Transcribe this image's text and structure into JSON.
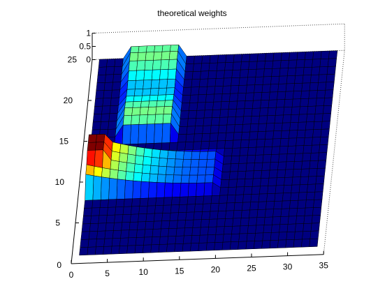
{
  "chart_data": {
    "type": "surface",
    "title": "theoretical weights",
    "xlabel": "",
    "ylabel": "",
    "zlabel": "",
    "xlim": [
      0,
      35
    ],
    "ylim": [
      0,
      25
    ],
    "zlim": [
      0,
      1
    ],
    "x_ticks": [
      "0",
      "5",
      "10",
      "15",
      "20",
      "25",
      "30",
      "35"
    ],
    "y_ticks": [
      "5",
      "10",
      "15",
      "20",
      "25"
    ],
    "z_ticks": [
      "0",
      "0.5",
      "1"
    ],
    "y_axis_zero_label": "0",
    "grid": true,
    "colormap": "jet",
    "grid_size": {
      "nx": 30,
      "ny": 25
    },
    "regions": [
      {
        "name": "vertical-bar",
        "x": [
          5,
          12
        ],
        "y": [
          15,
          25
        ],
        "z_range": [
          0.3,
          0.5
        ]
      },
      {
        "name": "horizontal-bar",
        "x": [
          1,
          19
        ],
        "y": [
          8,
          13
        ],
        "z_range": [
          0.2,
          1.0
        ]
      },
      {
        "name": "peak",
        "x": [
          1,
          4
        ],
        "y": [
          10,
          13
        ],
        "z_range": [
          0.9,
          1.0
        ]
      }
    ]
  }
}
